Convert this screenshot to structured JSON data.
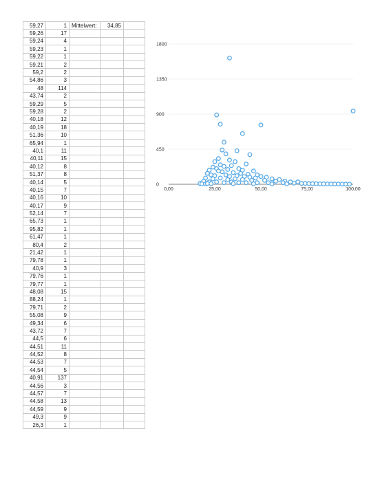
{
  "sheet": {
    "rows": [
      [
        "59,27",
        "1"
      ],
      [
        "59,26",
        "17"
      ],
      [
        "59,24",
        "4"
      ],
      [
        "59,23",
        "1"
      ],
      [
        "59,22",
        "1"
      ],
      [
        "59,21",
        "2"
      ],
      [
        "59,2",
        "2"
      ],
      [
        "54,86",
        "3"
      ],
      [
        "48",
        "114"
      ],
      [
        "43,74",
        "2"
      ],
      [
        "59,29",
        "5"
      ],
      [
        "59,28",
        "2"
      ],
      [
        "40,18",
        "12"
      ],
      [
        "40,19",
        "18"
      ],
      [
        "51,36",
        "10"
      ],
      [
        "65,94",
        "1"
      ],
      [
        "40,1",
        "11"
      ],
      [
        "40,11",
        "15"
      ],
      [
        "40,12",
        "8"
      ],
      [
        "51,37",
        "8"
      ],
      [
        "40,14",
        "5"
      ],
      [
        "40,15",
        "7"
      ],
      [
        "40,16",
        "10"
      ],
      [
        "40,17",
        "9"
      ],
      [
        "52,14",
        "7"
      ],
      [
        "65,73",
        "1"
      ],
      [
        "95,82",
        "1"
      ],
      [
        "61,47",
        "1"
      ],
      [
        "80,4",
        "2"
      ],
      [
        "21,42",
        "1"
      ],
      [
        "79,78",
        "1"
      ],
      [
        "40,9",
        "3"
      ],
      [
        "79,76",
        "1"
      ],
      [
        "79,77",
        "1"
      ],
      [
        "48,08",
        "15"
      ],
      [
        "88,24",
        "1"
      ],
      [
        "79,71",
        "2"
      ],
      [
        "55,08",
        "9"
      ],
      [
        "49,34",
        "6"
      ],
      [
        "43,72",
        "7"
      ],
      [
        "44,5",
        "6"
      ],
      [
        "44,51",
        "11"
      ],
      [
        "44,52",
        "8"
      ],
      [
        "44,53",
        "7"
      ],
      [
        "44,54",
        "5"
      ],
      [
        "40,91",
        "137"
      ],
      [
        "44,56",
        "3"
      ],
      [
        "44,57",
        "7"
      ],
      [
        "44,58",
        "13"
      ],
      [
        "44,59",
        "9"
      ],
      [
        "49,3",
        "9"
      ],
      [
        "26,3",
        "1"
      ]
    ],
    "mean_label": "Mittelwert:",
    "mean_value": "34,85"
  },
  "chart_data": {
    "type": "scatter",
    "title": "",
    "xlabel": "",
    "ylabel": "",
    "xlim": [
      0,
      100
    ],
    "ylim": [
      0,
      1800
    ],
    "x_ticks": [
      "0,00",
      "25,00",
      "50,00",
      "75,00",
      "100,00"
    ],
    "y_ticks": [
      "0",
      "450",
      "900",
      "1350",
      "1800"
    ],
    "grid": true,
    "legend": "none",
    "marker_color": "#5aaae6",
    "points": [
      [
        33,
        1620
      ],
      [
        100,
        940
      ],
      [
        26,
        890
      ],
      [
        28,
        770
      ],
      [
        50,
        760
      ],
      [
        40,
        650
      ],
      [
        30,
        540
      ],
      [
        37,
        430
      ],
      [
        44,
        380
      ],
      [
        29,
        440
      ],
      [
        31,
        390
      ],
      [
        27,
        330
      ],
      [
        33,
        310
      ],
      [
        36,
        290
      ],
      [
        42,
        260
      ],
      [
        25,
        290
      ],
      [
        28,
        250
      ],
      [
        30,
        230
      ],
      [
        34,
        240
      ],
      [
        38,
        200
      ],
      [
        24,
        220
      ],
      [
        26,
        200
      ],
      [
        32,
        190
      ],
      [
        40,
        180
      ],
      [
        46,
        170
      ],
      [
        22,
        180
      ],
      [
        27,
        170
      ],
      [
        29,
        160
      ],
      [
        35,
        150
      ],
      [
        39,
        140
      ],
      [
        43,
        130
      ],
      [
        48,
        120
      ],
      [
        21,
        140
      ],
      [
        23,
        120
      ],
      [
        25,
        110
      ],
      [
        31,
        120
      ],
      [
        33,
        100
      ],
      [
        37,
        110
      ],
      [
        41,
        100
      ],
      [
        44,
        90
      ],
      [
        47,
        80
      ],
      [
        50,
        100
      ],
      [
        53,
        90
      ],
      [
        56,
        70
      ],
      [
        20,
        80
      ],
      [
        24,
        70
      ],
      [
        28,
        80
      ],
      [
        32,
        60
      ],
      [
        36,
        70
      ],
      [
        40,
        60
      ],
      [
        45,
        50
      ],
      [
        52,
        50
      ],
      [
        58,
        40
      ],
      [
        60,
        60
      ],
      [
        63,
        40
      ],
      [
        66,
        30
      ],
      [
        70,
        30
      ],
      [
        19,
        40
      ],
      [
        22,
        30
      ],
      [
        26,
        30
      ],
      [
        30,
        20
      ],
      [
        34,
        30
      ],
      [
        38,
        20
      ],
      [
        42,
        20
      ],
      [
        48,
        20
      ],
      [
        54,
        20
      ],
      [
        62,
        20
      ],
      [
        68,
        15
      ],
      [
        72,
        10
      ],
      [
        74,
        10
      ],
      [
        76,
        8
      ],
      [
        78,
        8
      ],
      [
        80,
        6
      ],
      [
        82,
        5
      ],
      [
        84,
        5
      ],
      [
        86,
        4
      ],
      [
        88,
        4
      ],
      [
        90,
        3
      ],
      [
        92,
        3
      ],
      [
        94,
        2
      ],
      [
        96,
        2
      ],
      [
        98,
        2
      ],
      [
        17,
        10
      ],
      [
        18,
        5
      ],
      [
        20,
        5
      ],
      [
        21,
        10
      ],
      [
        23,
        8
      ],
      [
        35,
        8
      ],
      [
        46,
        6
      ],
      [
        56,
        5
      ],
      [
        64,
        5
      ]
    ]
  }
}
